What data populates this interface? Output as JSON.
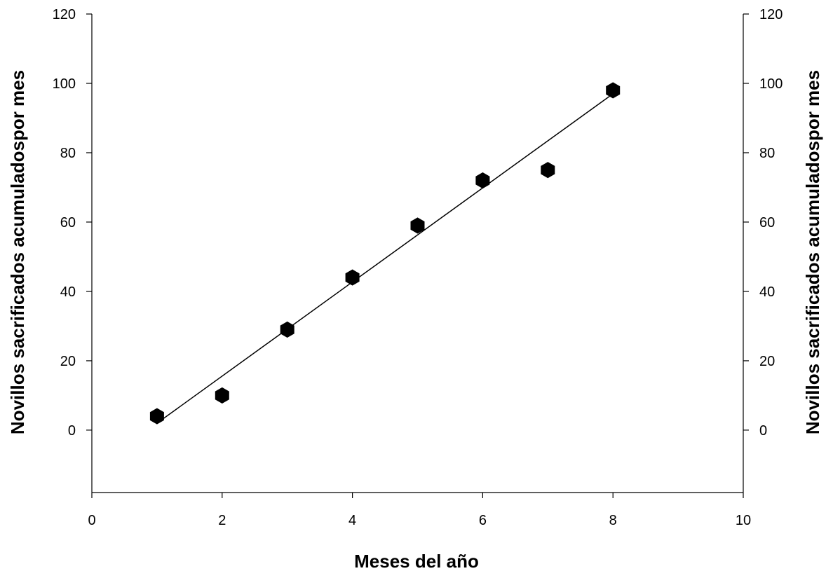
{
  "chart_data": {
    "type": "scatter",
    "title": "",
    "xlabel": "Meses del año",
    "ylabel": "Novillos sacrificados acumuladospor mes",
    "ylabel_right": "Novillos sacrificados acumuladospor mes",
    "xlim": [
      0,
      10
    ],
    "ylim": [
      -18,
      120
    ],
    "x_ticks": [
      0,
      2,
      4,
      6,
      8,
      10
    ],
    "y_ticks": [
      0,
      20,
      40,
      60,
      80,
      100,
      120
    ],
    "grid": false,
    "legend": "none",
    "marker": "hexagon",
    "marker_color": "#000000",
    "series": [
      {
        "x": [
          1,
          2,
          3,
          4,
          5,
          6,
          7,
          8
        ],
        "y": [
          4,
          10,
          29,
          44,
          59,
          72,
          75,
          98
        ]
      }
    ],
    "trendline": {
      "type": "linear",
      "x": [
        1,
        8
      ],
      "y": [
        2,
        97
      ]
    }
  }
}
